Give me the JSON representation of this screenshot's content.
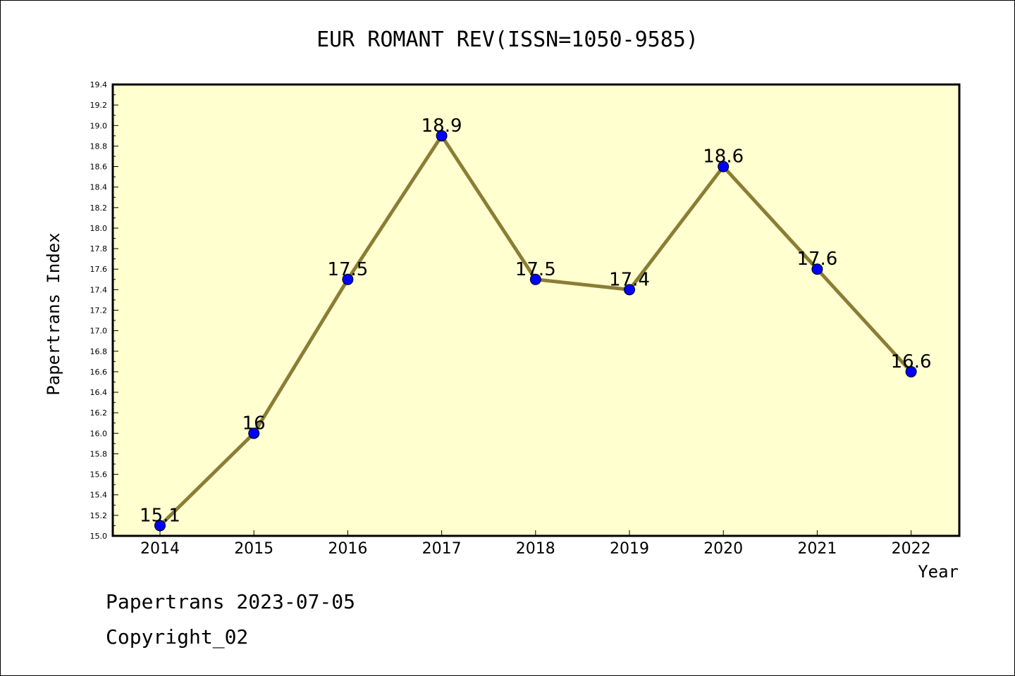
{
  "chart_data": {
    "type": "line",
    "title": "EUR ROMANT REV(ISSN=1050-9585)",
    "xlabel": "Year",
    "ylabel": "Papertrans Index",
    "categories": [
      "2014",
      "2015",
      "2016",
      "2017",
      "2018",
      "2019",
      "2020",
      "2021",
      "2022"
    ],
    "series": [
      {
        "values": [
          15.1,
          16,
          17.5,
          18.9,
          17.5,
          17.4,
          18.6,
          17.6,
          16.6
        ],
        "data_labels": [
          "15.1",
          "16",
          "17.5",
          "18.9",
          "17.5",
          "17.4",
          "18.6",
          "17.6",
          "16.6"
        ]
      }
    ],
    "ylim": [
      15.0,
      19.4
    ],
    "y_ticks": [
      "15.0",
      "15.2",
      "15.4",
      "15.6",
      "15.8",
      "16.0",
      "16.2",
      "16.4",
      "16.6",
      "16.8",
      "17.0",
      "17.2",
      "17.4",
      "17.6",
      "17.8",
      "18.0",
      "18.2",
      "18.4",
      "18.6",
      "18.8",
      "19.0",
      "19.2",
      "19.4"
    ],
    "grid": false,
    "colors": {
      "plot_background": "#ffffd0",
      "line": "#8b7d35",
      "marker": "#0000ff",
      "frame": "#000000"
    }
  },
  "footer": {
    "line1": "Papertrans 2023-07-05",
    "line2": "Copyright_02"
  }
}
